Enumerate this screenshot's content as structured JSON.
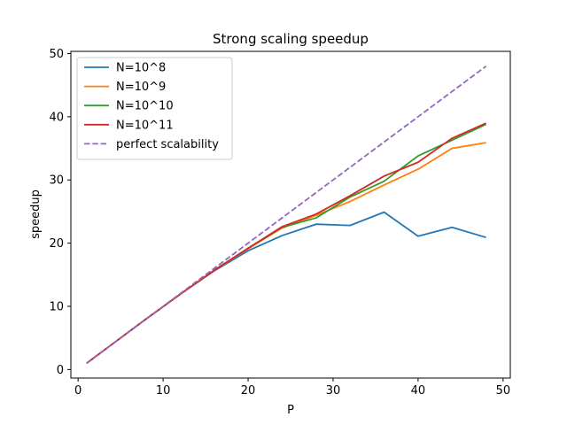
{
  "chart_data": {
    "type": "line",
    "title": "Strong scaling speedup",
    "xlabel": "P",
    "ylabel": "speedup",
    "xlim": [
      -0.85,
      50.85
    ],
    "ylim": [
      -1.35,
      50.35
    ],
    "xticks": [
      0,
      10,
      20,
      30,
      40,
      50
    ],
    "yticks": [
      0,
      10,
      20,
      30,
      40,
      50
    ],
    "grid": false,
    "legend_position": "top-left",
    "series": [
      {
        "name": "N=10^8",
        "color": "#1f77b4",
        "dash": "solid",
        "x": [
          1,
          4,
          8,
          12,
          16,
          20,
          24,
          28,
          32,
          36,
          40,
          44,
          48
        ],
        "y": [
          1,
          4,
          8,
          11.9,
          15.6,
          18.8,
          21.2,
          23.0,
          22.8,
          24.9,
          21.1,
          22.5,
          20.9
        ]
      },
      {
        "name": "N=10^9",
        "color": "#ff7f0e",
        "dash": "solid",
        "x": [
          1,
          4,
          8,
          12,
          16,
          20,
          24,
          28,
          32,
          36,
          40,
          44,
          48
        ],
        "y": [
          1,
          4,
          8,
          11.9,
          15.7,
          19.1,
          22.4,
          24.4,
          26.6,
          29.2,
          31.7,
          35.0,
          35.9
        ]
      },
      {
        "name": "N=10^10",
        "color": "#2ca02c",
        "dash": "solid",
        "x": [
          1,
          4,
          8,
          12,
          16,
          20,
          24,
          28,
          32,
          36,
          40,
          44,
          48
        ],
        "y": [
          1,
          4,
          8,
          11.9,
          15.7,
          19.2,
          22.5,
          24.0,
          27.3,
          29.8,
          33.8,
          36.3,
          38.8
        ]
      },
      {
        "name": "N=10^11",
        "color": "#d62728",
        "dash": "solid",
        "x": [
          1,
          4,
          8,
          12,
          16,
          20,
          24,
          28,
          32,
          36,
          40,
          44,
          48
        ],
        "y": [
          1,
          4,
          8,
          11.9,
          15.7,
          19.2,
          22.6,
          24.6,
          27.5,
          30.6,
          32.8,
          36.6,
          39.0
        ]
      },
      {
        "name": "perfect scalability",
        "color": "#9467bd",
        "dash": "dashed",
        "x": [
          1,
          48
        ],
        "y": [
          1,
          48
        ]
      }
    ]
  }
}
